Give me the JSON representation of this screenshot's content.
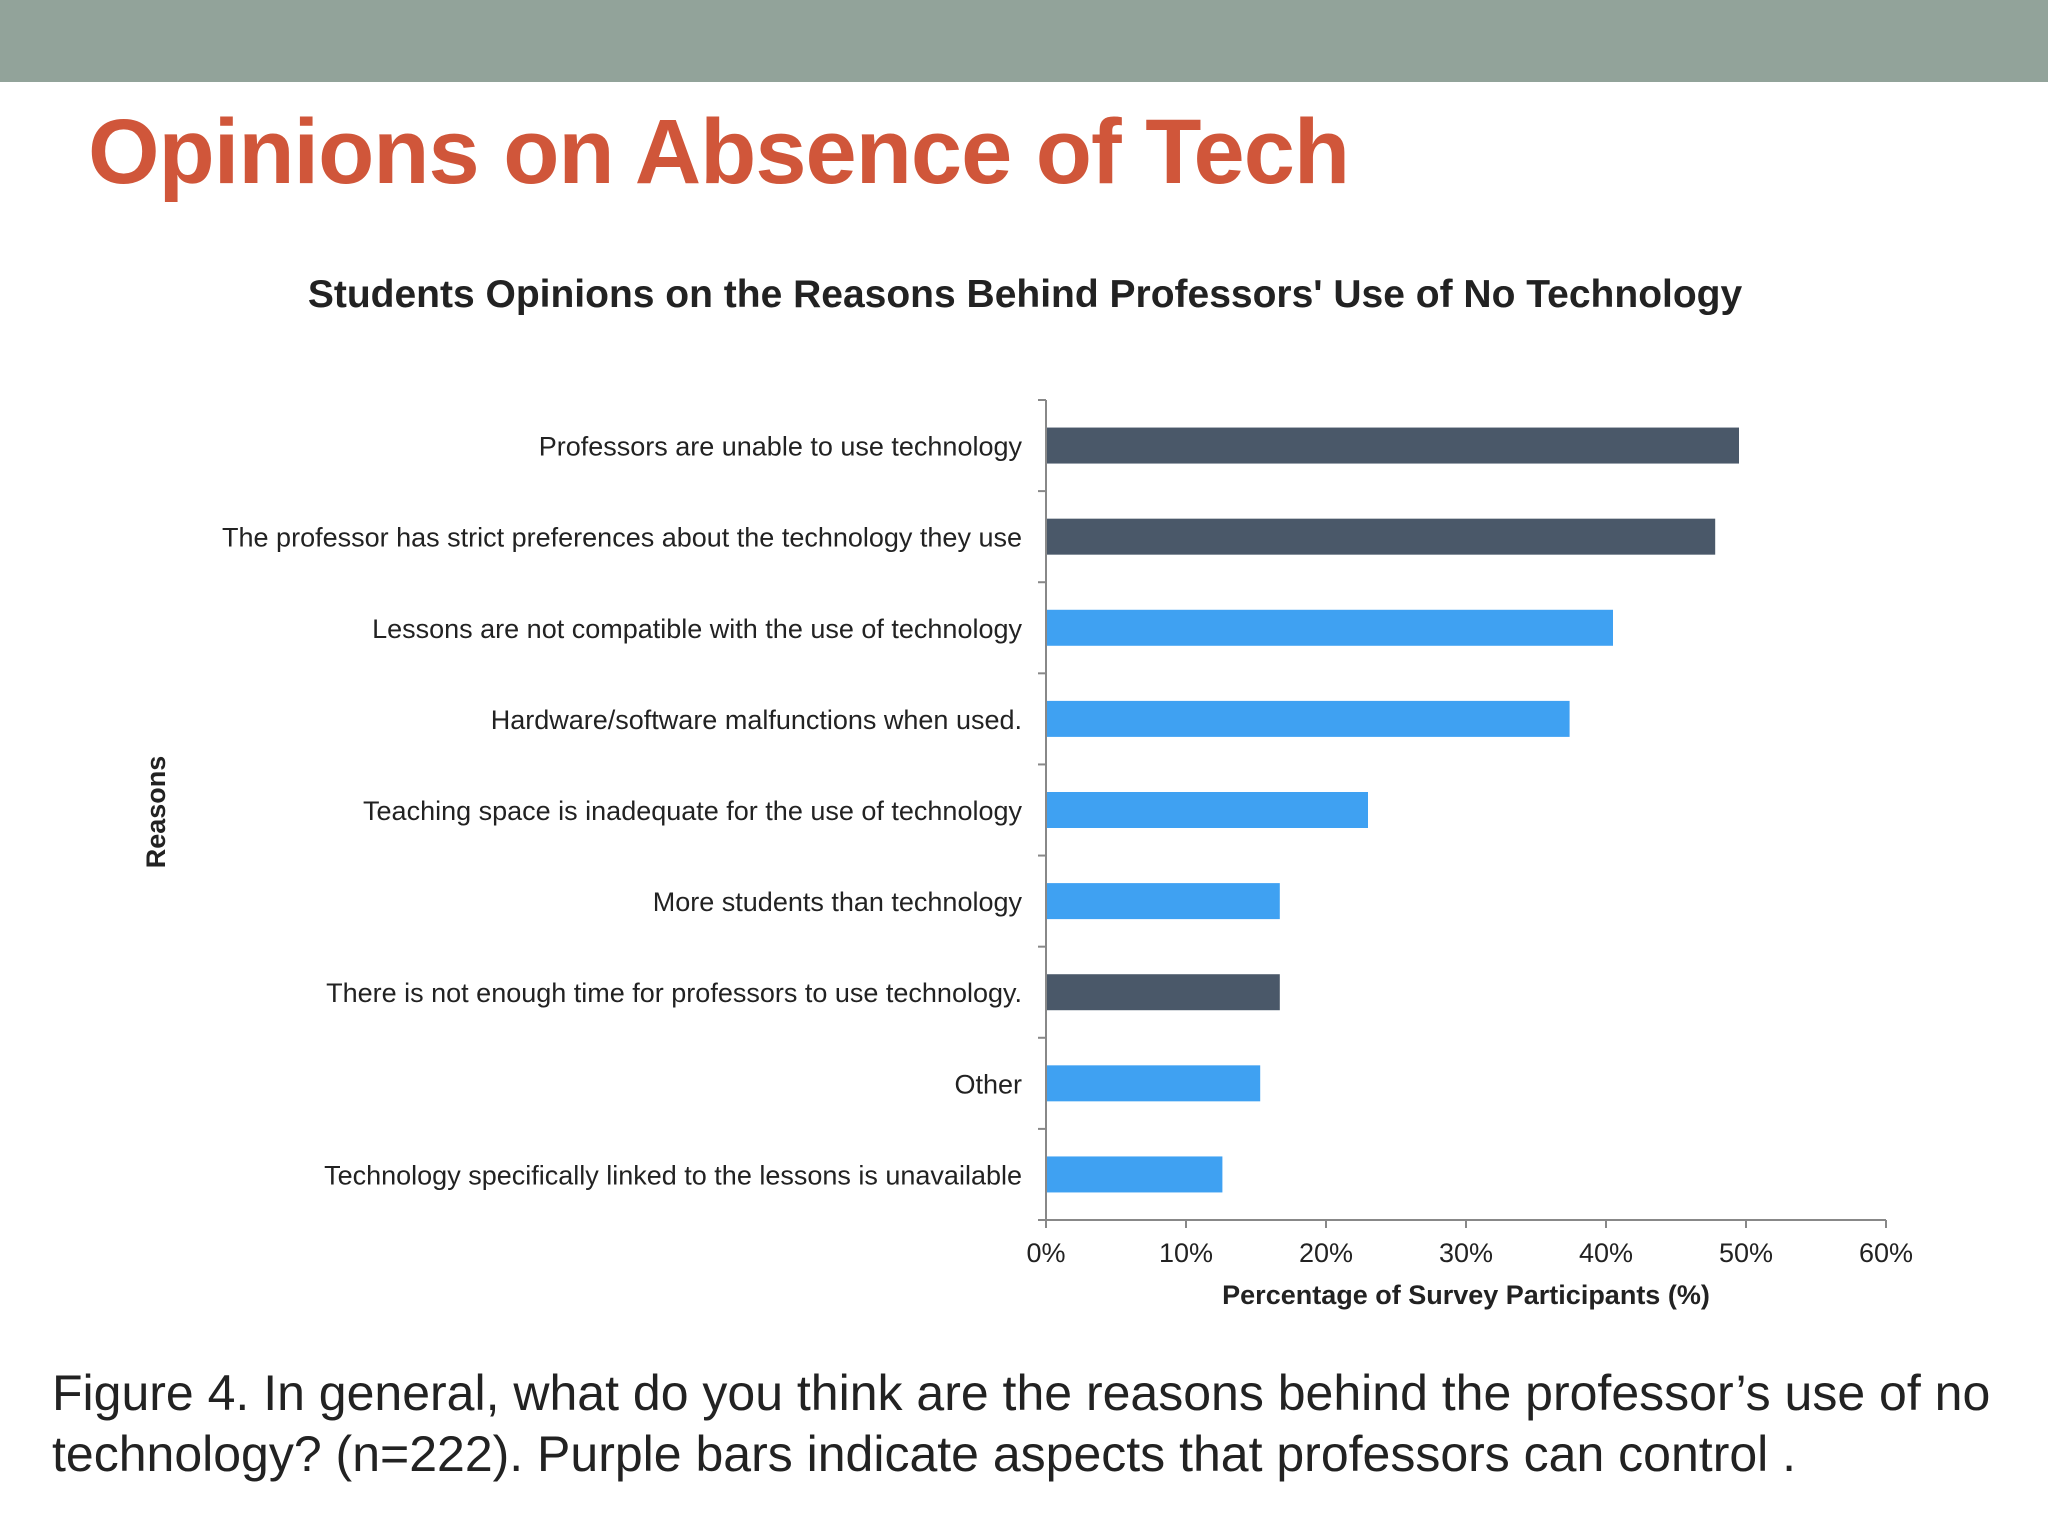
{
  "slide": {
    "title": "Opinions on Absence of Tech",
    "header_band_color": "#92a39a",
    "title_color": "#d0563a",
    "caption": "Figure 4. In general, what do you think are the reasons behind the professor’s use of no technology? (n=222). Purple bars indicate aspects that professors can control ."
  },
  "chart_data": {
    "type": "bar",
    "orientation": "horizontal",
    "title": "Students Opinions on the Reasons Behind Professors' Use of No Technology",
    "xlabel": "Percentage of Survey Participants (%)",
    "ylabel": "Reasons",
    "xlim": [
      0,
      60
    ],
    "xticks": [
      "0%",
      "10%",
      "20%",
      "30%",
      "40%",
      "50%",
      "60%"
    ],
    "grid": false,
    "categories": [
      "Professors are unable to use technology",
      "The professor has strict preferences about the technology they use",
      "Lessons are not compatible with the use of technology",
      "Hardware/software malfunctions when used.",
      "Teaching space is inadequate for the use of technology",
      "More students than technology",
      "There is not enough time for professors to use technology.",
      "Other",
      "Technology specifically linked to the lessons is unavailable"
    ],
    "values": [
      49.5,
      47.8,
      40.5,
      37.4,
      23.0,
      16.7,
      16.7,
      15.3,
      12.6
    ],
    "controllable": [
      true,
      true,
      false,
      false,
      false,
      false,
      true,
      false,
      false
    ],
    "colors": {
      "controllable": "#4a5869",
      "other": "#3fa1f2"
    }
  }
}
